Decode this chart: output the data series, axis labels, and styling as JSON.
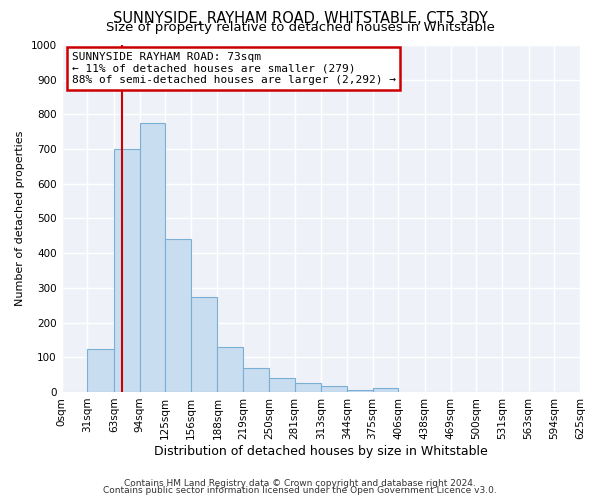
{
  "title": "SUNNYSIDE, RAYHAM ROAD, WHITSTABLE, CT5 3DY",
  "subtitle": "Size of property relative to detached houses in Whitstable",
  "xlabel": "Distribution of detached houses by size in Whitstable",
  "ylabel": "Number of detached properties",
  "bin_edges": [
    0,
    31,
    63,
    94,
    125,
    156,
    188,
    219,
    250,
    281,
    313,
    344,
    375,
    406,
    438,
    469,
    500,
    531,
    563,
    594,
    625
  ],
  "bar_heights": [
    0,
    125,
    700,
    775,
    440,
    275,
    130,
    68,
    40,
    25,
    18,
    5,
    10,
    0,
    0,
    0,
    0,
    0,
    0,
    0
  ],
  "bar_color": "#c8ddf0",
  "bar_edge_color": "#7bafd4",
  "bar_edge_width": 0.8,
  "vline_x": 73,
  "vline_color": "#cc0000",
  "ylim": [
    0,
    1000
  ],
  "yticks": [
    0,
    100,
    200,
    300,
    400,
    500,
    600,
    700,
    800,
    900,
    1000
  ],
  "annotation_title": "SUNNYSIDE RAYHAM ROAD: 73sqm",
  "annotation_line1": "← 11% of detached houses are smaller (279)",
  "annotation_line2": "88% of semi-detached houses are larger (2,292) →",
  "annotation_box_facecolor": "#ffffff",
  "annotation_box_edgecolor": "#cc0000",
  "footer_line1": "Contains HM Land Registry data © Crown copyright and database right 2024.",
  "footer_line2": "Contains public sector information licensed under the Open Government Licence v3.0.",
  "plot_bg_color": "#eef2f8",
  "fig_bg_color": "#ffffff",
  "grid_color": "#ffffff",
  "title_fontsize": 10.5,
  "subtitle_fontsize": 9.5,
  "xlabel_fontsize": 9,
  "ylabel_fontsize": 8,
  "tick_label_fontsize": 7.5,
  "annotation_fontsize": 8,
  "footer_fontsize": 6.5
}
